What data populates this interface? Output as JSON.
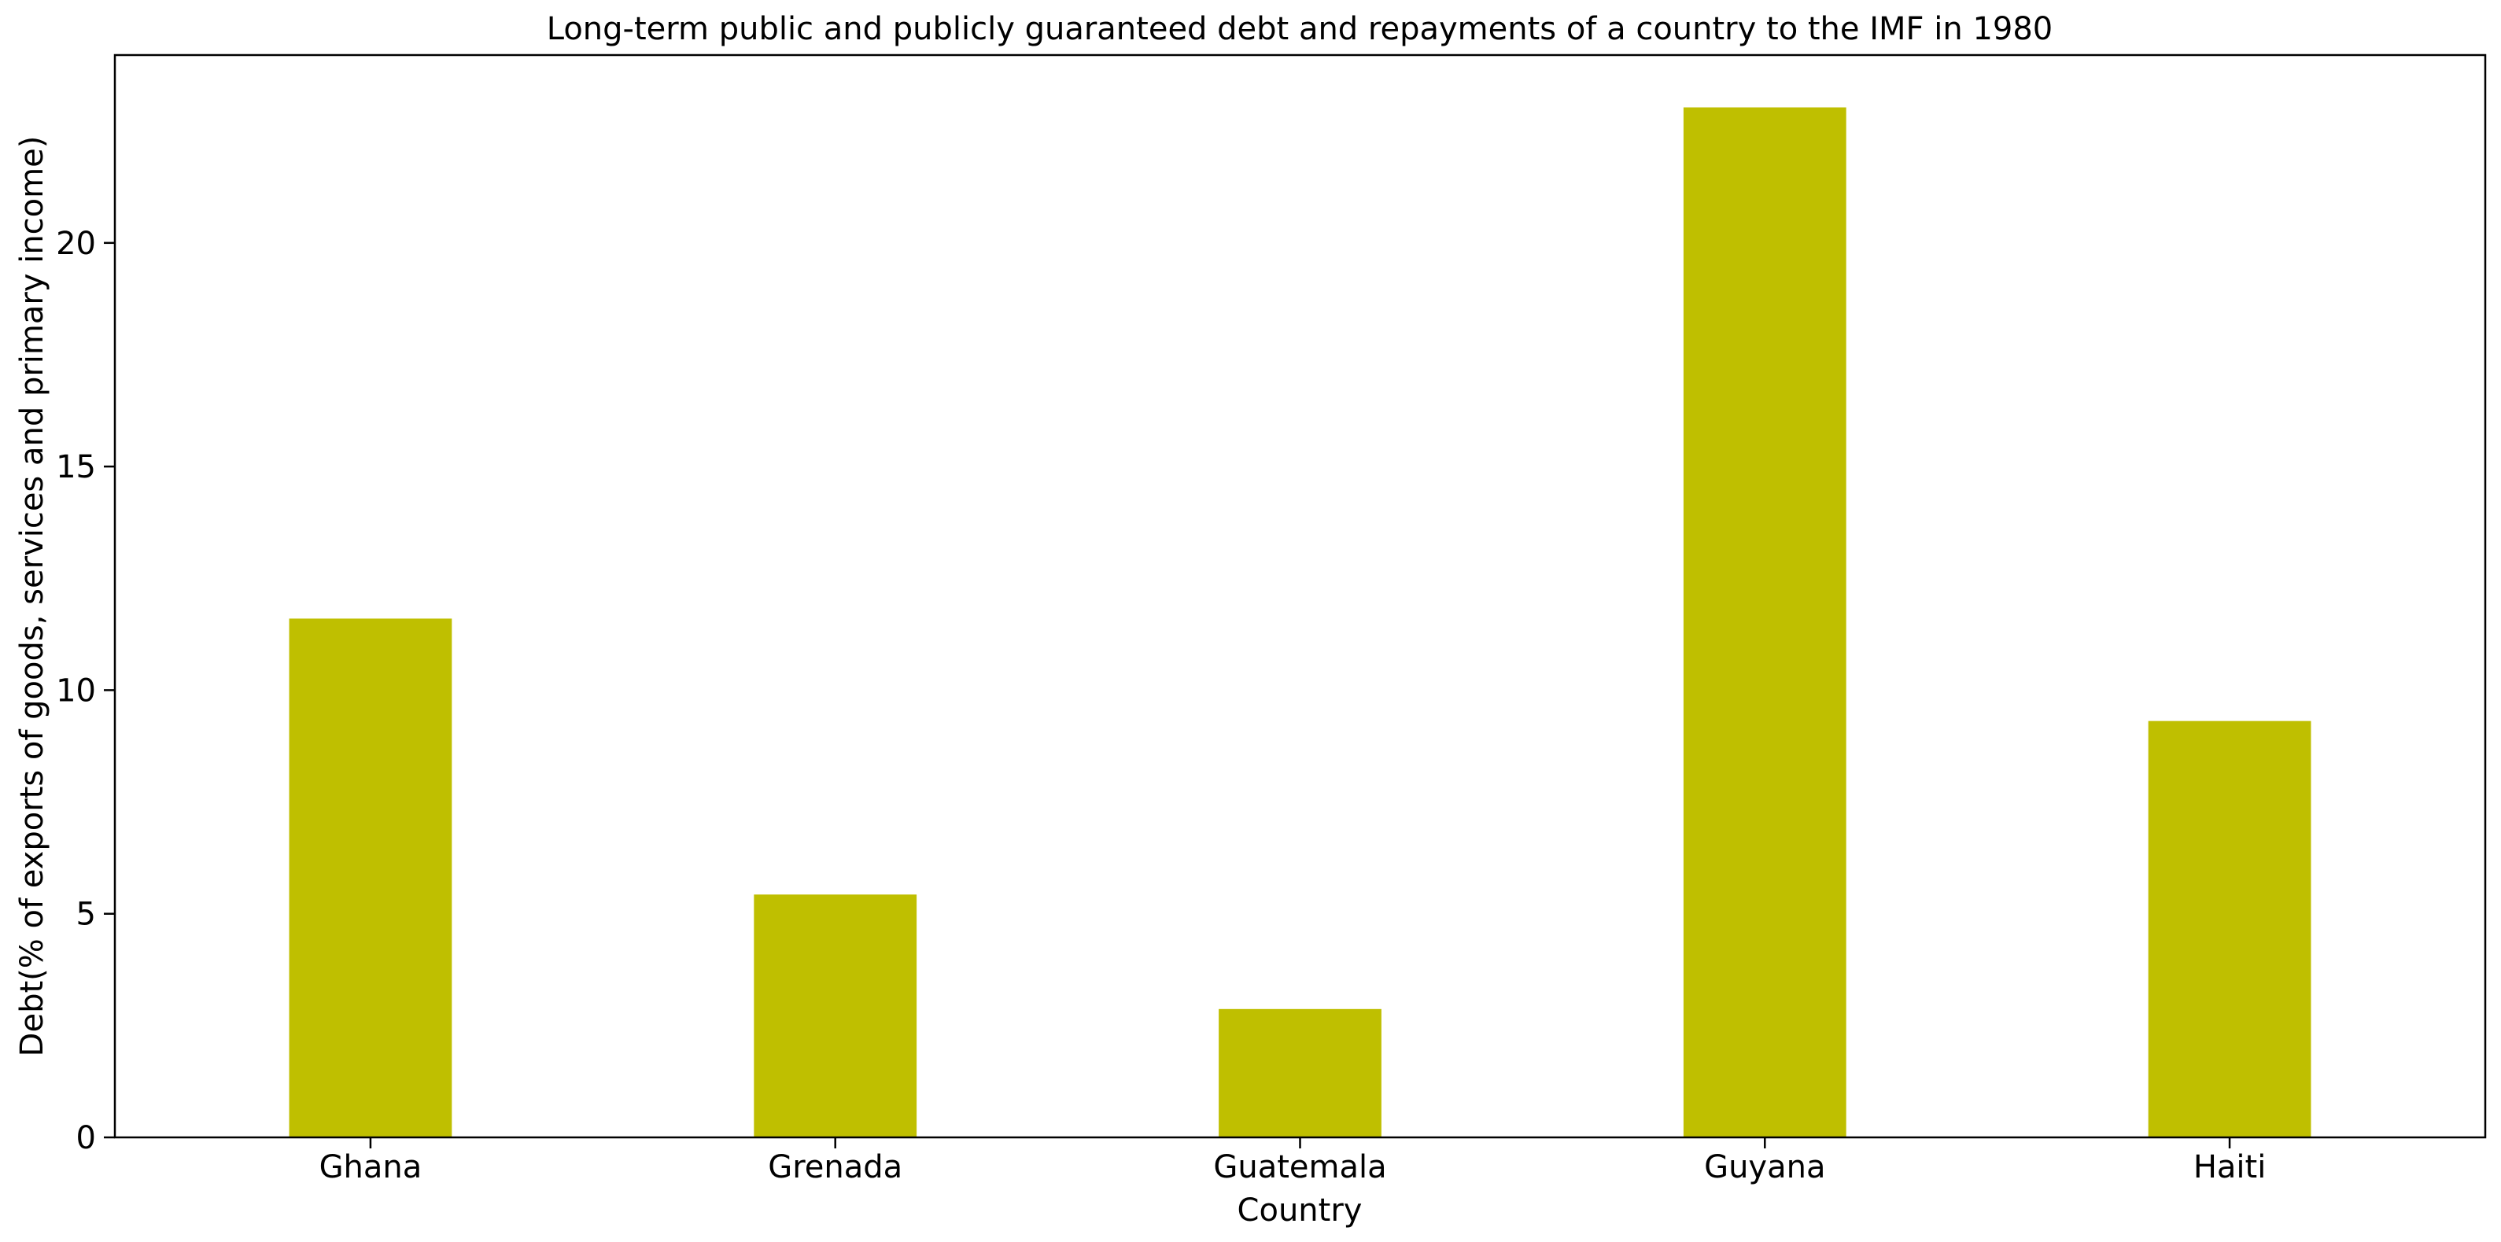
{
  "chart_data": {
    "type": "bar",
    "title": "Long-term public and publicly guaranteed debt and repayments of a country to the IMF in 1980",
    "xlabel": "Country",
    "ylabel": "Debt(% of exports of goods, services and primary income)",
    "categories": [
      "Ghana",
      "Grenada",
      "Guatemala",
      "Guyana",
      "Haiti"
    ],
    "values": [
      11.6,
      5.43,
      2.87,
      23.03,
      9.31
    ],
    "ylim": [
      0,
      24.2
    ],
    "yticks": [
      0,
      5,
      10,
      15,
      20
    ],
    "ytick_labels": [
      "0",
      "5",
      "10",
      "15",
      "20"
    ],
    "bar_color": "#bfbf00",
    "grid": false,
    "legend": "none"
  }
}
